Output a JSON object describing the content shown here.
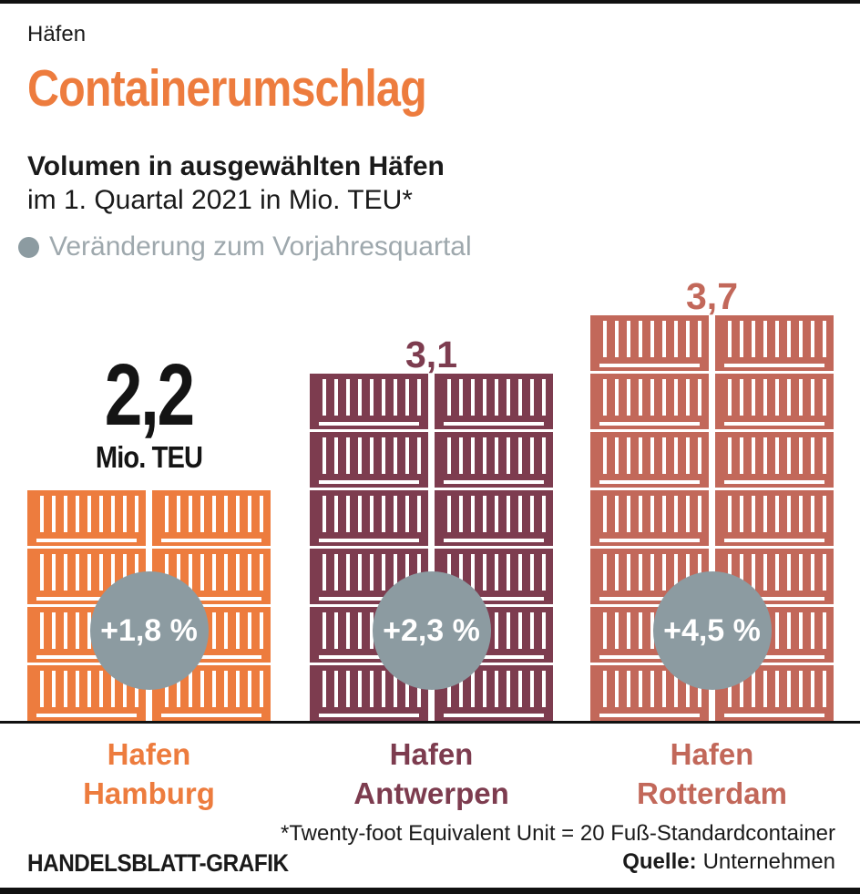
{
  "page": {
    "kicker": "Häfen",
    "title": "Containerumschlag",
    "subtitle_bold": "Volumen in ausgewählten Häfen",
    "subtitle": "im 1. Quartal 2021 in Mio. TEU*",
    "legend_label": "Veränderung zum Vorjahresquartal",
    "footnote": "*Twenty-foot Equivalent Unit = 20 Fuß-Standardcontainer",
    "source_label": "Quelle:",
    "source_value": "Unternehmen",
    "credit": "HANDELSBLATT-GRAFIK"
  },
  "colors": {
    "accent_orange": "#ED7C3E",
    "maroon": "#7D3C4F",
    "salmon": "#C2685A",
    "circle_gray": "#8C9BA1",
    "legend_gray": "#9EA8AD",
    "text_black": "#1A1A1A"
  },
  "chart_data": {
    "type": "bar",
    "style": "container-pictogram",
    "title": "Containerumschlag",
    "subtitle": "Volumen in ausgewählten Häfen im 1. Quartal 2021 in Mio. TEU*",
    "unit": "Mio. TEU",
    "legend": "Veränderung zum Vorjahresquartal",
    "categories": [
      "Hafen Hamburg",
      "Hafen Antwerpen",
      "Hafen Rotterdam"
    ],
    "values": [
      2.2,
      3.1,
      3.7
    ],
    "value_labels": [
      "2,2",
      "3,1",
      "3,7"
    ],
    "change_vs_prev_year_quarter": [
      "+1,8 %",
      "+2,3 %",
      "+4,5 %"
    ],
    "bars": [
      {
        "id": "hamburg",
        "name_lines": [
          "Hafen",
          "Hamburg"
        ],
        "value": 2.2,
        "value_label": "2,2",
        "unit_label": "Mio. TEU",
        "big_value": true,
        "change": "+1,8 %",
        "color": "#ED7C3E",
        "containers_per_column": 4
      },
      {
        "id": "antwerpen",
        "name_lines": [
          "Hafen",
          "Antwerpen"
        ],
        "value": 3.1,
        "value_label": "3,1",
        "big_value": false,
        "change": "+2,3 %",
        "color": "#7D3C4F",
        "containers_per_column": 6
      },
      {
        "id": "rotterdam",
        "name_lines": [
          "Hafen",
          "Rotterdam"
        ],
        "value": 3.7,
        "value_label": "3,7",
        "big_value": false,
        "change": "+4,5 %",
        "color": "#C2685A",
        "containers_per_column": 7
      }
    ]
  }
}
